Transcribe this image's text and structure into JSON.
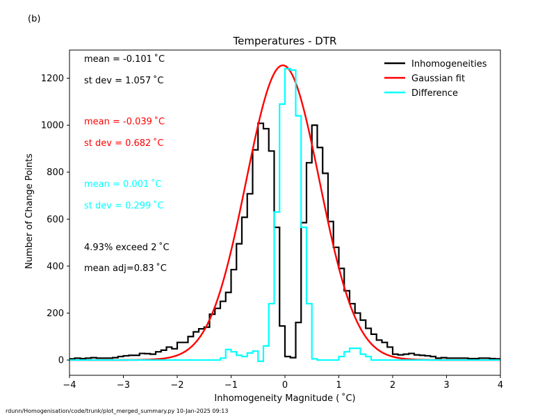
{
  "panel_label": "(b)",
  "footer": "rdunn/Homogenisation/code/trunk/plot_merged_summary.py   10-Jan-2025 09:13",
  "colors": {
    "inhomogeneities": "#000000",
    "gaussian": "#ff0000",
    "difference": "#00ffff"
  },
  "annotations": [
    {
      "text": "mean = -0.101 ˚C",
      "color": "#000000"
    },
    {
      "text": "st dev =  1.057 ˚C",
      "color": "#000000"
    },
    {
      "text": "mean = -0.039 ˚C",
      "color": "#ff0000"
    },
    {
      "text": "st dev =  0.682 ˚C",
      "color": "#ff0000"
    },
    {
      "text": "mean =  0.001 ˚C",
      "color": "#00ffff"
    },
    {
      "text": "st dev =  0.299 ˚C",
      "color": "#00ffff"
    },
    {
      "text": "4.93% exceed 2 ˚C",
      "color": "#000000"
    },
    {
      "text": "mean adj=0.83 ˚C",
      "color": "#000000"
    }
  ],
  "chart_data": {
    "type": "line",
    "title": "Temperatures - DTR",
    "xlabel": "Inhomogeneity Magnitude ( ˚C)",
    "ylabel": "Number of Change Points",
    "xlim": [
      -4,
      4
    ],
    "ylim": [
      -65,
      1320
    ],
    "xticks": [
      -4,
      -3,
      -2,
      -1,
      0,
      1,
      2,
      3,
      4
    ],
    "yticks": [
      0,
      200,
      400,
      600,
      800,
      1000,
      1200
    ],
    "grid": false,
    "legend_position": "top-right",
    "bin_edges_start": -4.0,
    "bin_width": 0.1,
    "series": [
      {
        "name": "Inhomogeneities",
        "style": "step",
        "color": "#000000",
        "values": [
          5,
          8,
          6,
          8,
          10,
          8,
          8,
          8,
          10,
          15,
          18,
          20,
          20,
          28,
          27,
          25,
          35,
          42,
          55,
          48,
          75,
          75,
          100,
          120,
          133,
          140,
          195,
          220,
          250,
          288,
          385,
          495,
          608,
          708,
          895,
          1008,
          985,
          890,
          565,
          145,
          15,
          10,
          160,
          585,
          840,
          1000,
          905,
          795,
          590,
          480,
          390,
          295,
          240,
          200,
          170,
          135,
          110,
          85,
          75,
          55,
          25,
          22,
          25,
          28,
          22,
          20,
          18,
          15,
          8,
          10,
          8,
          8,
          8,
          8,
          6,
          6,
          8,
          8,
          6,
          5
        ]
      },
      {
        "name": "Gaussian fit",
        "style": "curve",
        "color": "#ff0000",
        "mean": -0.039,
        "stdev": 0.682,
        "peak": 1255
      },
      {
        "name": "Difference",
        "style": "step",
        "color": "#00ffff",
        "values": [
          0,
          0,
          0,
          0,
          0,
          0,
          0,
          0,
          0,
          0,
          0,
          0,
          0,
          0,
          0,
          0,
          0,
          0,
          0,
          0,
          0,
          0,
          0,
          0,
          0,
          0,
          0,
          0,
          8,
          45,
          35,
          20,
          15,
          30,
          38,
          -5,
          60,
          240,
          630,
          1090,
          1240,
          1235,
          1040,
          565,
          240,
          5,
          0,
          0,
          0,
          0,
          15,
          35,
          50,
          50,
          25,
          15,
          0,
          0,
          0,
          0,
          0,
          0,
          0,
          0,
          0,
          0,
          0,
          0,
          0,
          0,
          0,
          0,
          0,
          0,
          0,
          0,
          0,
          0,
          0,
          0
        ]
      }
    ]
  }
}
